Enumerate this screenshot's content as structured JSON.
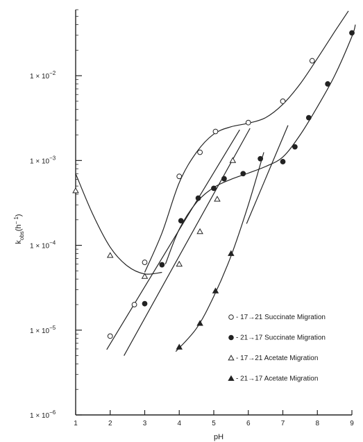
{
  "chart_data": {
    "type": "scatter",
    "xlabel": "pH",
    "ylabel": "k_obs(h^-1)",
    "ylabel_main": "k",
    "ylabel_sub": "obs",
    "ylabel_unit": "(h",
    "ylabel_exp": "− 1",
    "ylabel_close": ")",
    "xlim": [
      1,
      9
    ],
    "ylim": [
      1e-06,
      0.06
    ],
    "yscale": "log",
    "x_ticks": [
      1,
      2,
      3,
      4,
      5,
      6,
      7,
      8,
      9
    ],
    "x_tick_labels": [
      "1",
      "2",
      "3",
      "4",
      "5",
      "6",
      "7",
      "8",
      "9"
    ],
    "y_ticks": [
      {
        "value": 1e-06,
        "base": "1 × 10",
        "exp": "−6"
      },
      {
        "value": 1e-05,
        "base": "1 × 10",
        "exp": "−5"
      },
      {
        "value": 0.0001,
        "base": "1 × 10",
        "exp": "−4"
      },
      {
        "value": 0.001,
        "base": "1 × 10",
        "exp": "−3"
      },
      {
        "value": 0.01,
        "base": "1 × 10",
        "exp": "−2"
      }
    ],
    "grid": false,
    "legend_position": "bottom-right",
    "series": [
      {
        "name": "- 17→21 Succinate Migration",
        "marker": "open-circle",
        "points": [
          [
            2.0,
            8.5e-06
          ],
          [
            2.7,
            2e-05
          ],
          [
            3.0,
            6.3e-05
          ],
          [
            4.0,
            0.00065
          ],
          [
            4.6,
            0.00125
          ],
          [
            5.05,
            0.0022
          ],
          [
            6.0,
            0.0028
          ],
          [
            7.0,
            0.005
          ],
          [
            7.85,
            0.015
          ]
        ],
        "curve": [
          [
            3.0,
            4.8e-05
          ],
          [
            3.5,
            0.00014
          ],
          [
            4.0,
            0.00055
          ],
          [
            4.5,
            0.00125
          ],
          [
            5.0,
            0.00205
          ],
          [
            5.5,
            0.0025
          ],
          [
            6.0,
            0.00275
          ],
          [
            6.5,
            0.0032
          ],
          [
            7.0,
            0.0046
          ],
          [
            7.5,
            0.008
          ],
          [
            8.0,
            0.016
          ],
          [
            8.5,
            0.033
          ],
          [
            8.9,
            0.058
          ]
        ]
      },
      {
        "name": "- 21→17 Succinate Migration",
        "marker": "filled-circle",
        "points": [
          [
            3.0,
            2.05e-05
          ],
          [
            3.5,
            5.9e-05
          ],
          [
            4.05,
            0.000195
          ],
          [
            4.55,
            0.00036
          ],
          [
            5.0,
            0.00047
          ],
          [
            5.3,
            0.00061
          ],
          [
            5.85,
            0.0007
          ],
          [
            6.35,
            0.00105
          ],
          [
            7.0,
            0.00097
          ],
          [
            7.35,
            0.00145
          ],
          [
            7.75,
            0.0032
          ],
          [
            8.3,
            0.008
          ],
          [
            9.0,
            0.032
          ]
        ],
        "curve": [
          [
            3.6,
            6e-05
          ],
          [
            4.0,
            0.000155
          ],
          [
            4.5,
            0.00032
          ],
          [
            5.0,
            0.00048
          ],
          [
            5.5,
            0.0006
          ],
          [
            6.0,
            0.00071
          ],
          [
            6.5,
            0.00085
          ],
          [
            7.0,
            0.0011
          ],
          [
            7.5,
            0.002
          ],
          [
            8.0,
            0.0043
          ],
          [
            8.5,
            0.01
          ],
          [
            9.0,
            0.029
          ],
          [
            9.1,
            0.04
          ]
        ]
      },
      {
        "name": "- 17→21 Acetate Migration",
        "marker": "open-triangle",
        "points": [
          [
            1.0,
            0.00044
          ],
          [
            2.0,
            7.6e-05
          ],
          [
            3.0,
            4.3e-05
          ],
          [
            4.0,
            6e-05
          ],
          [
            4.6,
            0.000145
          ],
          [
            5.1,
            0.00035
          ],
          [
            5.55,
            0.001
          ]
        ],
        "curve": [
          [
            1.0,
            0.0007
          ],
          [
            1.5,
            0.00023
          ],
          [
            2.0,
            9.5e-05
          ],
          [
            2.5,
            5.7e-05
          ],
          [
            3.0,
            4.6e-05
          ],
          [
            3.5,
            4.8e-05
          ]
        ]
      },
      {
        "name": "- 21→17 Acetate Migration",
        "marker": "filled-triangle",
        "points": [
          [
            4.0,
            6.3e-06
          ],
          [
            4.6,
            1.2e-05
          ],
          [
            5.05,
            2.9e-05
          ],
          [
            5.5,
            8e-05
          ]
        ],
        "curve": [
          [
            3.9,
            5.6e-06
          ],
          [
            4.5,
            1.05e-05
          ],
          [
            5.0,
            2.5e-05
          ],
          [
            5.5,
            7.5e-05
          ],
          [
            6.0,
            0.0003
          ],
          [
            6.45,
            0.00125
          ]
        ]
      }
    ],
    "fit_lines": [
      {
        "from": [
          1.9,
          5.9e-06
        ],
        "to": [
          5.75,
          0.0023
        ]
      },
      {
        "from": [
          2.4,
          5e-06
        ],
        "to": [
          6.05,
          0.0024
        ]
      },
      {
        "from": [
          5.95,
          0.00018
        ],
        "to": [
          7.15,
          0.0026
        ]
      }
    ]
  }
}
